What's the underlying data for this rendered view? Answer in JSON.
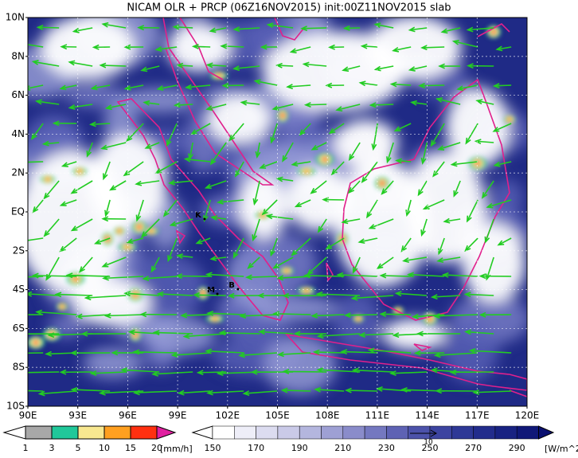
{
  "title": "NICAM OLR + PRCP (06Z16NOV2015) init:00Z11NOV2015 slab",
  "map": {
    "lat_labels": [
      "10N",
      "8N",
      "6N",
      "4N",
      "2N",
      "EQ",
      "2S",
      "4S",
      "6S",
      "8S",
      "10S"
    ],
    "lon_labels": [
      "90E",
      "93E",
      "96E",
      "99E",
      "102E",
      "105E",
      "108E",
      "111E",
      "114E",
      "117E",
      "120E"
    ],
    "markers": [
      "K",
      "M",
      "B"
    ]
  },
  "legend": {
    "prcp": {
      "labels": [
        "1",
        "3",
        "5",
        "10",
        "15",
        "20"
      ],
      "unit": "[mm/h]"
    },
    "olr": {
      "labels": [
        "150",
        "170",
        "190",
        "210",
        "230",
        "250",
        "270",
        "290"
      ],
      "unit": "[W/m^2]"
    },
    "vector_label": "10"
  }
}
